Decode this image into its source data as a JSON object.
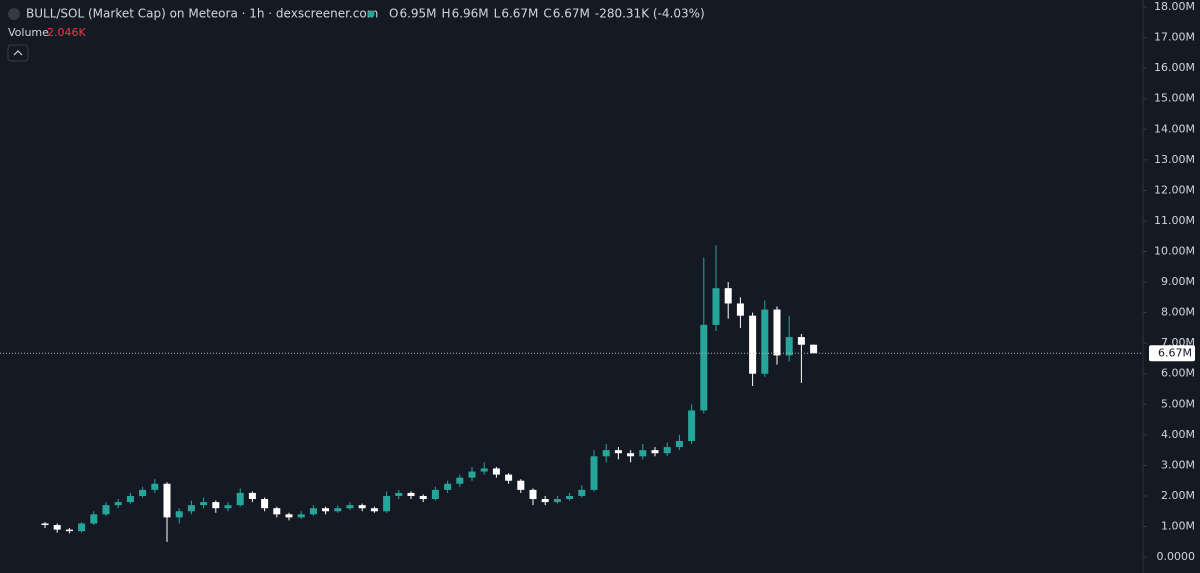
{
  "chart_data": {
    "type": "candlestick",
    "title": "BULL/SOL (Market Cap) on Meteora · 1h · dexscreener.com",
    "ohlc_legend": [
      {
        "key": "O",
        "value": "6.95M"
      },
      {
        "key": "H",
        "value": "6.96M"
      },
      {
        "key": "L",
        "value": "6.67M"
      },
      {
        "key": "C",
        "value": "6.67M"
      }
    ],
    "change": "-280.31K (-4.03%)",
    "volume_label": "Volume",
    "volume_value": "2.046K",
    "up_color": "#26a69a",
    "down_color": "#ffffff",
    "ylim": [
      -0.52,
      18.23
    ],
    "yticks": [
      {
        "value": 0,
        "label": "0.0000"
      },
      {
        "value": 1,
        "label": "1.00M"
      },
      {
        "value": 2,
        "label": "2.00M"
      },
      {
        "value": 3,
        "label": "3.00M"
      },
      {
        "value": 4,
        "label": "4.00M"
      },
      {
        "value": 5,
        "label": "5.00M"
      },
      {
        "value": 6,
        "label": "6.00M"
      },
      {
        "value": 7,
        "label": "7.00M"
      },
      {
        "value": 8,
        "label": "8.00M"
      },
      {
        "value": 9,
        "label": "9.00M"
      },
      {
        "value": 10,
        "label": "10.00M"
      },
      {
        "value": 11,
        "label": "11.00M"
      },
      {
        "value": 12,
        "label": "12.00M"
      },
      {
        "value": 13,
        "label": "13.00M"
      },
      {
        "value": 14,
        "label": "14.00M"
      },
      {
        "value": 15,
        "label": "15.00M"
      },
      {
        "value": 16,
        "label": "16.00M"
      },
      {
        "value": 17,
        "label": "17.00M"
      },
      {
        "value": 18,
        "label": "18.00M"
      }
    ],
    "last_price": {
      "value": 6.67,
      "label": "6.67M"
    },
    "candles": [
      {
        "o": 1.1,
        "h": 1.15,
        "l": 0.95,
        "c": 1.05
      },
      {
        "o": 1.05,
        "h": 1.1,
        "l": 0.8,
        "c": 0.9
      },
      {
        "o": 0.9,
        "h": 0.95,
        "l": 0.78,
        "c": 0.85
      },
      {
        "o": 0.85,
        "h": 1.15,
        "l": 0.8,
        "c": 1.1
      },
      {
        "o": 1.1,
        "h": 1.5,
        "l": 1.05,
        "c": 1.4
      },
      {
        "o": 1.4,
        "h": 1.8,
        "l": 1.35,
        "c": 1.7
      },
      {
        "o": 1.7,
        "h": 1.9,
        "l": 1.6,
        "c": 1.8
      },
      {
        "o": 1.8,
        "h": 2.1,
        "l": 1.75,
        "c": 2.0
      },
      {
        "o": 2.0,
        "h": 2.3,
        "l": 1.95,
        "c": 2.2
      },
      {
        "o": 2.2,
        "h": 2.55,
        "l": 2.1,
        "c": 2.4
      },
      {
        "o": 2.4,
        "h": 2.45,
        "l": 0.5,
        "c": 1.3
      },
      {
        "o": 1.3,
        "h": 1.6,
        "l": 1.1,
        "c": 1.5
      },
      {
        "o": 1.5,
        "h": 1.85,
        "l": 1.4,
        "c": 1.7
      },
      {
        "o": 1.7,
        "h": 1.95,
        "l": 1.6,
        "c": 1.8
      },
      {
        "o": 1.8,
        "h": 1.85,
        "l": 1.45,
        "c": 1.6
      },
      {
        "o": 1.6,
        "h": 1.8,
        "l": 1.5,
        "c": 1.7
      },
      {
        "o": 1.7,
        "h": 2.25,
        "l": 1.65,
        "c": 2.1
      },
      {
        "o": 2.1,
        "h": 2.15,
        "l": 1.8,
        "c": 1.9
      },
      {
        "o": 1.9,
        "h": 1.95,
        "l": 1.5,
        "c": 1.6
      },
      {
        "o": 1.6,
        "h": 1.65,
        "l": 1.3,
        "c": 1.4
      },
      {
        "o": 1.4,
        "h": 1.45,
        "l": 1.2,
        "c": 1.3
      },
      {
        "o": 1.3,
        "h": 1.5,
        "l": 1.25,
        "c": 1.4
      },
      {
        "o": 1.4,
        "h": 1.7,
        "l": 1.35,
        "c": 1.6
      },
      {
        "o": 1.6,
        "h": 1.65,
        "l": 1.4,
        "c": 1.5
      },
      {
        "o": 1.5,
        "h": 1.7,
        "l": 1.45,
        "c": 1.6
      },
      {
        "o": 1.6,
        "h": 1.8,
        "l": 1.55,
        "c": 1.7
      },
      {
        "o": 1.7,
        "h": 1.75,
        "l": 1.5,
        "c": 1.6
      },
      {
        "o": 1.6,
        "h": 1.65,
        "l": 1.45,
        "c": 1.5
      },
      {
        "o": 1.5,
        "h": 2.15,
        "l": 1.45,
        "c": 2.0
      },
      {
        "o": 2.0,
        "h": 2.2,
        "l": 1.9,
        "c": 2.1
      },
      {
        "o": 2.1,
        "h": 2.15,
        "l": 1.9,
        "c": 2.0
      },
      {
        "o": 2.0,
        "h": 2.05,
        "l": 1.8,
        "c": 1.9
      },
      {
        "o": 1.9,
        "h": 2.3,
        "l": 1.85,
        "c": 2.2
      },
      {
        "o": 2.2,
        "h": 2.5,
        "l": 2.1,
        "c": 2.4
      },
      {
        "o": 2.4,
        "h": 2.7,
        "l": 2.3,
        "c": 2.6
      },
      {
        "o": 2.6,
        "h": 2.95,
        "l": 2.5,
        "c": 2.8
      },
      {
        "o": 2.8,
        "h": 3.1,
        "l": 2.7,
        "c": 2.9
      },
      {
        "o": 2.9,
        "h": 2.95,
        "l": 2.6,
        "c": 2.7
      },
      {
        "o": 2.7,
        "h": 2.75,
        "l": 2.4,
        "c": 2.5
      },
      {
        "o": 2.5,
        "h": 2.55,
        "l": 2.1,
        "c": 2.2
      },
      {
        "o": 2.2,
        "h": 2.25,
        "l": 1.7,
        "c": 1.9
      },
      {
        "o": 1.9,
        "h": 2.0,
        "l": 1.7,
        "c": 1.8
      },
      {
        "o": 1.8,
        "h": 2.0,
        "l": 1.75,
        "c": 1.9
      },
      {
        "o": 1.9,
        "h": 2.1,
        "l": 1.85,
        "c": 2.0
      },
      {
        "o": 2.0,
        "h": 2.35,
        "l": 1.95,
        "c": 2.2
      },
      {
        "o": 2.2,
        "h": 3.5,
        "l": 2.15,
        "c": 3.3
      },
      {
        "o": 3.3,
        "h": 3.7,
        "l": 3.1,
        "c": 3.5
      },
      {
        "o": 3.5,
        "h": 3.6,
        "l": 3.2,
        "c": 3.4
      },
      {
        "o": 3.4,
        "h": 3.5,
        "l": 3.1,
        "c": 3.3
      },
      {
        "o": 3.3,
        "h": 3.7,
        "l": 3.2,
        "c": 3.5
      },
      {
        "o": 3.5,
        "h": 3.6,
        "l": 3.3,
        "c": 3.4
      },
      {
        "o": 3.4,
        "h": 3.75,
        "l": 3.3,
        "c": 3.6
      },
      {
        "o": 3.6,
        "h": 4.0,
        "l": 3.5,
        "c": 3.8
      },
      {
        "o": 3.8,
        "h": 5.0,
        "l": 3.7,
        "c": 4.8
      },
      {
        "o": 4.8,
        "h": 9.8,
        "l": 4.7,
        "c": 7.6
      },
      {
        "o": 7.6,
        "h": 10.2,
        "l": 7.4,
        "c": 8.8
      },
      {
        "o": 8.8,
        "h": 9.0,
        "l": 7.8,
        "c": 8.3
      },
      {
        "o": 8.3,
        "h": 8.5,
        "l": 7.5,
        "c": 7.9
      },
      {
        "o": 7.9,
        "h": 8.0,
        "l": 5.6,
        "c": 6.0
      },
      {
        "o": 6.0,
        "h": 8.4,
        "l": 5.9,
        "c": 8.1
      },
      {
        "o": 8.1,
        "h": 8.2,
        "l": 6.3,
        "c": 6.6
      },
      {
        "o": 6.6,
        "h": 7.9,
        "l": 6.4,
        "c": 7.2
      },
      {
        "o": 7.2,
        "h": 7.3,
        "l": 5.7,
        "c": 6.95
      },
      {
        "o": 6.95,
        "h": 6.96,
        "l": 6.67,
        "c": 6.67
      }
    ]
  }
}
